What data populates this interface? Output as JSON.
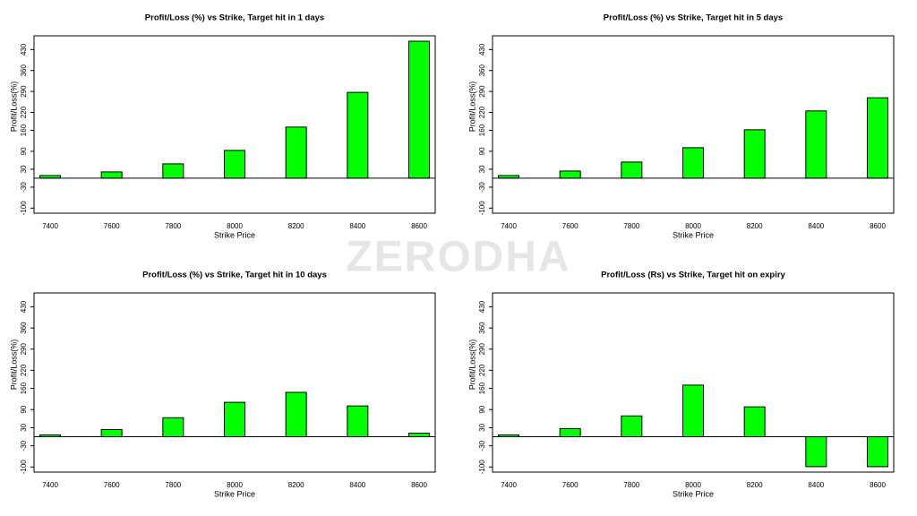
{
  "watermark": "ZERODHA",
  "chart_data": [
    {
      "type": "bar",
      "title": "Profit/Loss (%) vs Strike, Target hit in 1 days",
      "x_label": "Strike Price",
      "y_label": "Profit/Loss(%)",
      "categories": [
        "7400",
        "7600",
        "7800",
        "8000",
        "8200",
        "8400",
        "8600"
      ],
      "values": [
        9,
        21,
        48,
        93,
        171,
        287,
        458
      ],
      "color": "#00ff00",
      "ylim": [
        -117,
        476
      ],
      "yticks": [
        -100,
        -30,
        30,
        90,
        160,
        220,
        290,
        360,
        430
      ]
    },
    {
      "type": "bar",
      "title": "Profit/Loss (%) vs Strike, Target hit in 5 days",
      "x_label": "Strike Price",
      "y_label": "Profit/Loss(%)",
      "categories": [
        "7400",
        "7600",
        "7800",
        "8000",
        "8200",
        "8400",
        "8600"
      ],
      "values": [
        9,
        24,
        54,
        102,
        162,
        225,
        269
      ],
      "color": "#00ff00",
      "ylim": [
        -117,
        476
      ],
      "yticks": [
        -100,
        -30,
        30,
        90,
        160,
        220,
        290,
        360,
        430
      ]
    },
    {
      "type": "bar",
      "title": "Profit/Loss (%) vs Strike, Target hit in 10 days",
      "x_label": "Strike Price",
      "y_label": "Profit/Loss(%)",
      "categories": [
        "7400",
        "7600",
        "7800",
        "8000",
        "8200",
        "8400",
        "8600"
      ],
      "values": [
        6,
        24,
        63,
        114,
        147,
        102,
        12
      ],
      "color": "#00ff00",
      "ylim": [
        -117,
        476
      ],
      "yticks": [
        -100,
        -30,
        30,
        90,
        160,
        220,
        290,
        360,
        430
      ]
    },
    {
      "type": "bar",
      "title": "Profit/Loss (Rs) vs Strike, Target hit on expiry",
      "x_label": "Strike Price",
      "y_label": "Profit/Loss(%)",
      "categories": [
        "7400",
        "7600",
        "7800",
        "8000",
        "8200",
        "8400",
        "8600"
      ],
      "values": [
        6,
        27,
        69,
        171,
        99,
        -99,
        -99
      ],
      "color": "#00ff00",
      "ylim": [
        -117,
        476
      ],
      "yticks": [
        -100,
        -30,
        30,
        90,
        160,
        220,
        290,
        360,
        430
      ]
    }
  ]
}
